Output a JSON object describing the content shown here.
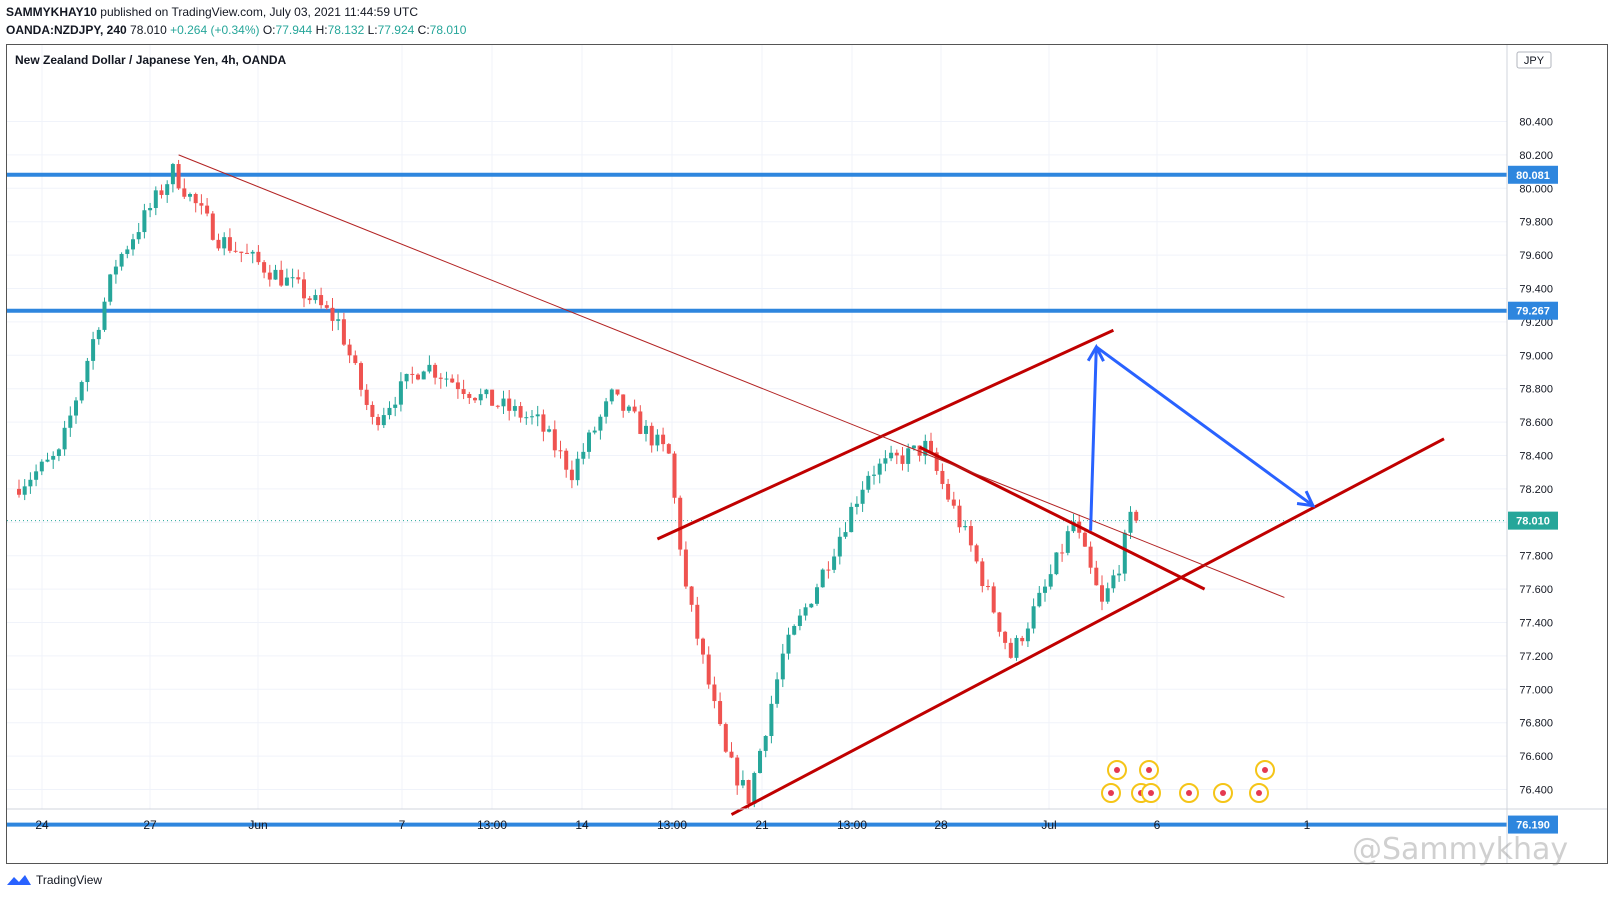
{
  "header": {
    "publisher": "SAMMYKHAY10",
    "published_text": "published on TradingView.com, July 03, 2021 11:44:59 UTC",
    "symbol": "OANDA:NZDJPY, 240",
    "last": "78.010",
    "change": "+0.264 (+0.34%)",
    "o_label": "O:",
    "o": "77.944",
    "h_label": "H:",
    "h": "78.132",
    "l_label": "L:",
    "l": "77.924",
    "c_label": "C:",
    "c": "78.010"
  },
  "footer": {
    "brand": "TradingView"
  },
  "watermark": "@Sammykhay",
  "colors": {
    "up": "#26a69a",
    "down": "#ef5350",
    "level": "#2e86de",
    "trend": "#c00000",
    "thin_trend": "#b22222",
    "arrow": "#2962ff",
    "axis_text": "#131722"
  },
  "chart_data": {
    "type": "candlestick",
    "title": "New Zealand Dollar / Japanese Yen, 4h, OANDA",
    "currency": "JPY",
    "ylim": [
      76.2,
      80.6
    ],
    "y_ticks": [
      "80.400",
      "80.200",
      "80.000",
      "79.800",
      "79.600",
      "79.400",
      "79.200",
      "79.000",
      "78.800",
      "78.600",
      "78.400",
      "78.200",
      "78.000",
      "77.800",
      "77.600",
      "77.400",
      "77.200",
      "77.000",
      "76.800",
      "76.600",
      "76.400"
    ],
    "x_ticks": [
      "24",
      "27",
      "Jun",
      "7",
      "13:00",
      "14",
      "13:00",
      "21",
      "13:00",
      "28",
      "Jul",
      "6",
      "1"
    ],
    "horizontal_levels": [
      {
        "price": 80.081,
        "label": "80.081"
      },
      {
        "price": 79.267,
        "label": "79.267"
      },
      {
        "price": 76.19,
        "label": "76.190"
      }
    ],
    "last_price": {
      "price": 78.01,
      "label": "78.010"
    },
    "anchors": [
      {
        "bar": 0,
        "price": 78.2
      },
      {
        "bar": 8,
        "price": 78.4
      },
      {
        "bar": 18,
        "price": 79.55
      },
      {
        "bar": 28,
        "price": 80.1
      },
      {
        "bar": 36,
        "price": 79.7
      },
      {
        "bar": 50,
        "price": 79.4
      },
      {
        "bar": 57,
        "price": 79.2
      },
      {
        "bar": 63,
        "price": 78.6
      },
      {
        "bar": 72,
        "price": 78.95
      },
      {
        "bar": 82,
        "price": 78.75
      },
      {
        "bar": 92,
        "price": 78.6
      },
      {
        "bar": 98,
        "price": 78.3
      },
      {
        "bar": 105,
        "price": 78.75
      },
      {
        "bar": 115,
        "price": 78.4
      },
      {
        "bar": 118,
        "price": 77.6
      },
      {
        "bar": 125,
        "price": 76.6
      },
      {
        "bar": 129,
        "price": 76.35
      },
      {
        "bar": 135,
        "price": 77.2
      },
      {
        "bar": 142,
        "price": 77.7
      },
      {
        "bar": 150,
        "price": 78.3
      },
      {
        "bar": 160,
        "price": 78.45
      },
      {
        "bar": 168,
        "price": 77.85
      },
      {
        "bar": 175,
        "price": 77.2
      },
      {
        "bar": 181,
        "price": 77.6
      },
      {
        "bar": 186,
        "price": 78.0
      },
      {
        "bar": 191,
        "price": 77.5
      },
      {
        "bar": 194,
        "price": 77.75
      },
      {
        "bar": 196,
        "price": 78.01
      }
    ],
    "bar_count": 197,
    "trend_lines": [
      {
        "name": "upper-channel",
        "from": {
          "bar": 112,
          "price": 77.9
        },
        "to": {
          "bar": 192,
          "price": 79.15
        }
      },
      {
        "name": "lower-channel",
        "from": {
          "bar": 125,
          "price": 76.25
        },
        "to": {
          "bar": 250,
          "price": 78.5
        }
      },
      {
        "name": "descending-resistance",
        "from": {
          "bar": 158,
          "price": 78.45
        },
        "to": {
          "bar": 208,
          "price": 77.6
        }
      },
      {
        "name": "long-descending",
        "from": {
          "bar": 28,
          "price": 80.2
        },
        "to": {
          "bar": 222,
          "price": 77.55
        }
      }
    ],
    "projection_arrows": [
      {
        "from": {
          "bar": 188,
          "price": 77.95
        },
        "to": {
          "bar": 189,
          "price": 79.05
        }
      },
      {
        "from": {
          "bar": 189,
          "price": 79.05
        },
        "to": {
          "bar": 227,
          "price": 78.1
        }
      }
    ]
  }
}
